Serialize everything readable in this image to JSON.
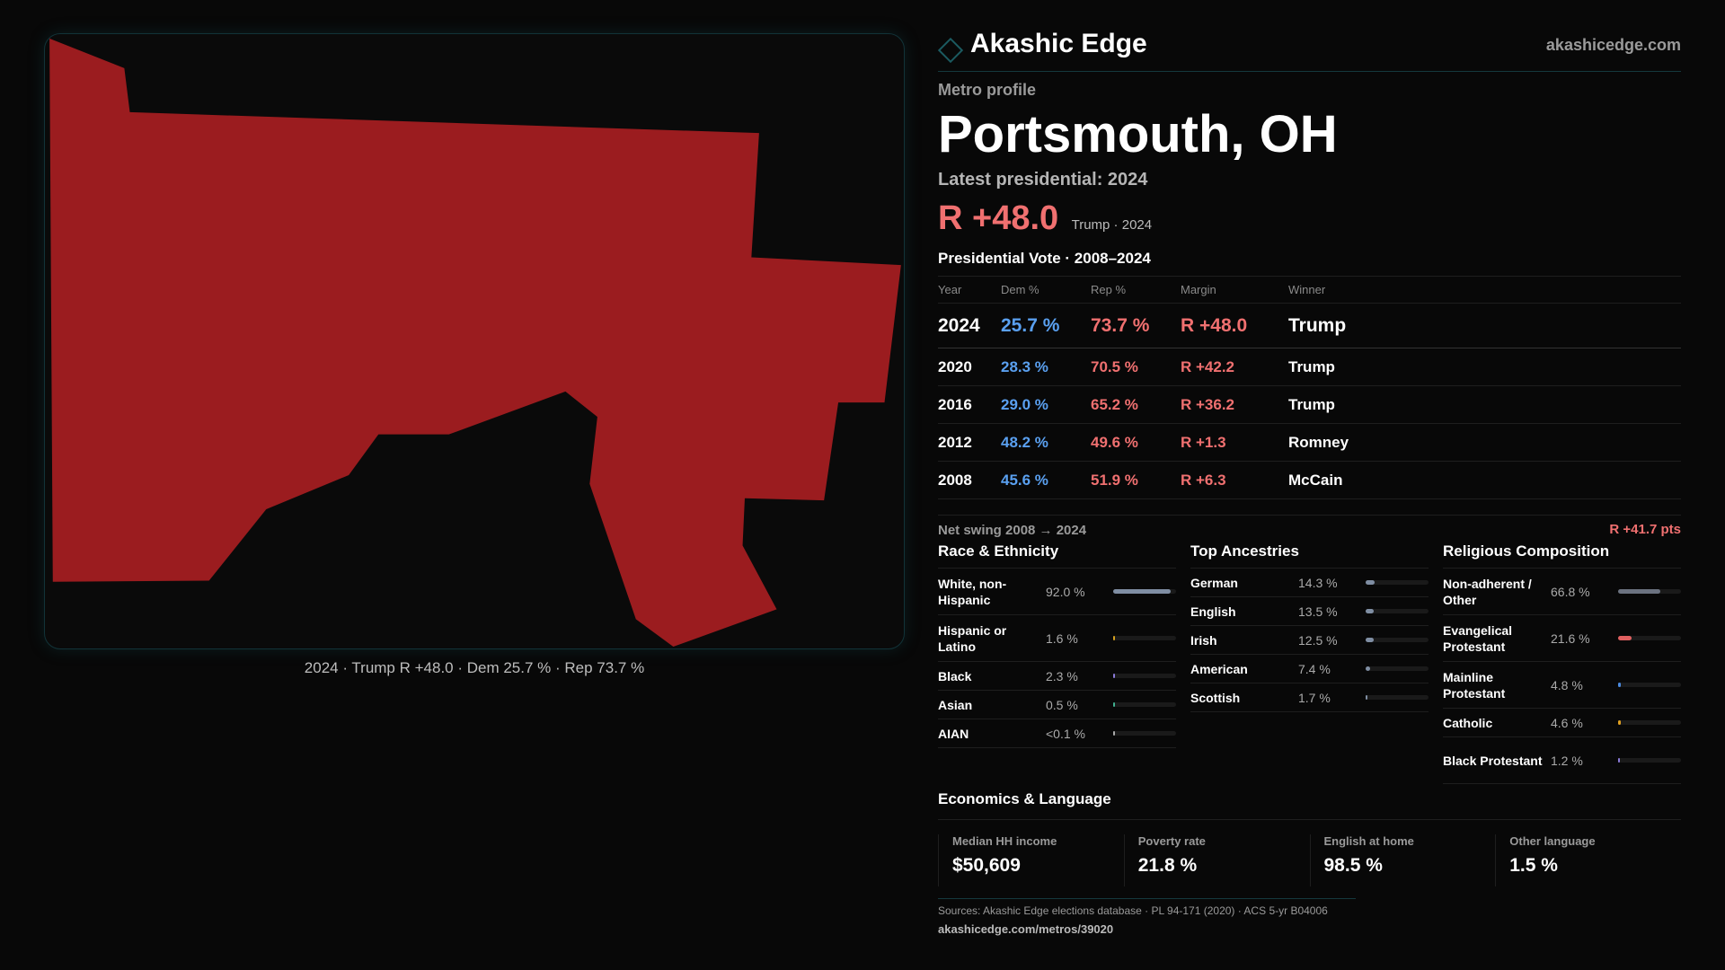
{
  "brand": {
    "name": "Akashic Edge",
    "site": "akashicedge.com",
    "accent": "#1b5a60"
  },
  "map": {
    "fill": "#9b1c1f",
    "caption": "2024 · Trump R +48.0 · Dem 25.7 % · Rep 73.7 %"
  },
  "profile": {
    "kicker": "Metro profile",
    "title": "Portsmouth, OH",
    "latest": "Latest presidential: 2024",
    "margin": "R +48.0",
    "margin_sub": "Trump · 2024"
  },
  "votes": {
    "title": "Presidential Vote · 2008–2024",
    "headers": [
      "Year",
      "Dem %",
      "Rep %",
      "Margin",
      "Winner"
    ],
    "rows": [
      [
        "2024",
        "25.7 %",
        "73.7 %",
        "R +48.0",
        "Trump"
      ],
      [
        "2020",
        "28.3 %",
        "70.5 %",
        "R +42.2",
        "Trump"
      ],
      [
        "2016",
        "29.0 %",
        "65.2 %",
        "R +36.2",
        "Trump"
      ],
      [
        "2012",
        "48.2 %",
        "49.6 %",
        "R +1.3",
        "Romney"
      ],
      [
        "2008",
        "45.6 %",
        "51.9 %",
        "R +6.3",
        "McCain"
      ]
    ],
    "swing_label": "Net swing 2008 → 2024",
    "swing_value": "R +41.7 pts"
  },
  "race": {
    "title": "Race & Ethnicity",
    "items": [
      {
        "label": "White, non-Hispanic",
        "value": "92.0 %",
        "pct": 92.0,
        "color": "#7f8ea3"
      },
      {
        "label": "Hispanic or Latino",
        "value": "1.6 %",
        "pct": 1.6,
        "color": "#d4a020"
      },
      {
        "label": "Black",
        "value": "2.3 %",
        "pct": 2.3,
        "color": "#8a7ad8"
      },
      {
        "label": "Asian",
        "value": "0.5 %",
        "pct": 0.5,
        "color": "#40b090"
      },
      {
        "label": "AIAN",
        "value": "<0.1 %",
        "pct": 0.05,
        "color": "#aaaaaa"
      }
    ]
  },
  "ancestry": {
    "title": "Top Ancestries",
    "items": [
      {
        "label": "German",
        "value": "14.3 %",
        "pct": 14.3,
        "color": "#7f8ea3"
      },
      {
        "label": "English",
        "value": "13.5 %",
        "pct": 13.5,
        "color": "#7f8ea3"
      },
      {
        "label": "Irish",
        "value": "12.5 %",
        "pct": 12.5,
        "color": "#7f8ea3"
      },
      {
        "label": "American",
        "value": "7.4 %",
        "pct": 7.4,
        "color": "#7f8ea3"
      },
      {
        "label": "Scottish",
        "value": "1.7 %",
        "pct": 1.7,
        "color": "#7f8ea3"
      }
    ]
  },
  "religion": {
    "title": "Religious Composition",
    "items": [
      {
        "label": "Non-adherent / Other",
        "value": "66.8 %",
        "pct": 66.8,
        "color": "#6b7280"
      },
      {
        "label": "Evangelical Protestant",
        "value": "21.6 %",
        "pct": 21.6,
        "color": "#e06060"
      },
      {
        "label": "Mainline Protestant",
        "value": "4.8 %",
        "pct": 4.8,
        "color": "#4a8ae0"
      },
      {
        "label": "Catholic",
        "value": "4.6 %",
        "pct": 4.6,
        "color": "#e0a020"
      },
      {
        "label": "Black Protestant",
        "value": "1.2 %",
        "pct": 1.2,
        "color": "#8a7ad8"
      }
    ]
  },
  "econ": {
    "title": "Economics & Language",
    "stats": [
      {
        "label": "Median HH income",
        "value": "$50,609"
      },
      {
        "label": "Poverty rate",
        "value": "21.8 %"
      },
      {
        "label": "English at home",
        "value": "98.5 %"
      },
      {
        "label": "Other language",
        "value": "1.5 %"
      }
    ]
  },
  "footer": {
    "sources": "Sources: Akashic Edge elections database · PL 94-171 (2020) · ACS 5-yr B04006",
    "url": "akashicedge.com/metros/39020"
  }
}
